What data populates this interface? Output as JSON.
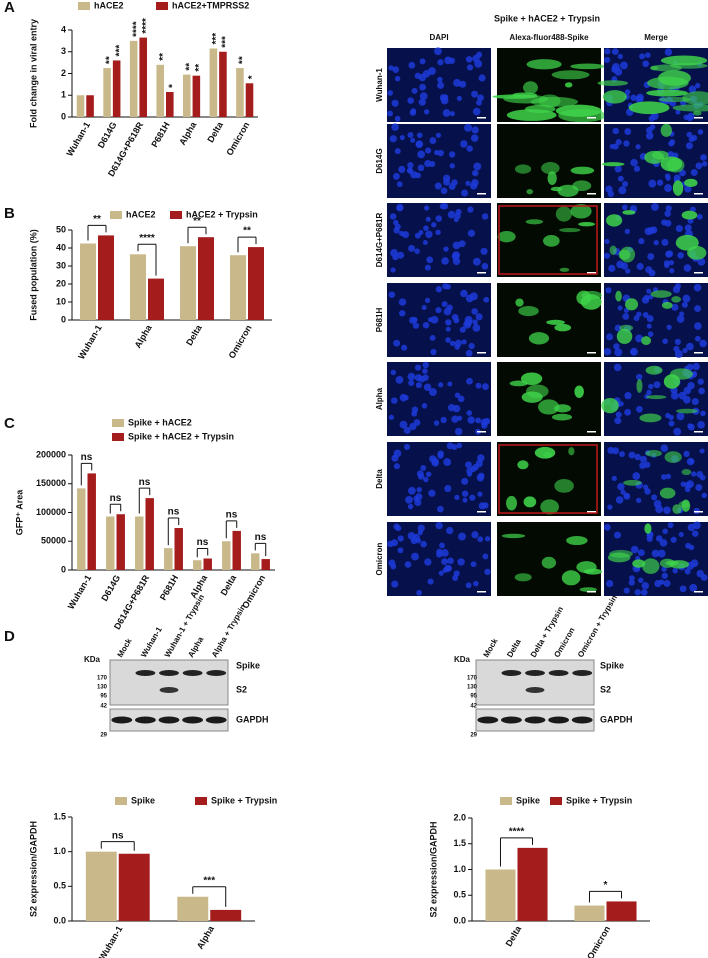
{
  "panel_labels": [
    "A",
    "B",
    "C",
    "D"
  ],
  "chart_data": [
    {
      "type": "bar",
      "y_label": "Fold change in viral entry",
      "categories": [
        "Wuhan-1",
        "D614G",
        "D614G+P618R",
        "P681H",
        "Alpha",
        "Delta",
        "Omicron"
      ],
      "series": [
        {
          "name": "hACE2",
          "color": "#c9b98a",
          "values": [
            1.0,
            2.25,
            3.5,
            2.4,
            1.95,
            3.15,
            2.25
          ],
          "significance": [
            null,
            "**",
            "****",
            "**",
            "**",
            "***",
            "**"
          ]
        },
        {
          "name": "hACE2+TMPRSS2",
          "color": "#a51c1c",
          "values": [
            1.0,
            2.6,
            3.65,
            1.15,
            1.9,
            3.0,
            1.55
          ],
          "significance": [
            null,
            "***",
            "****",
            "*",
            "**",
            "***",
            "*"
          ]
        }
      ],
      "ylim": [
        0,
        4
      ],
      "yticks": [
        0,
        1,
        2,
        3,
        4
      ]
    },
    {
      "type": "bar",
      "y_label": "Fused population (%)",
      "categories": [
        "Wuhan-1",
        "Alpha",
        "Delta",
        "Omicron"
      ],
      "series": [
        {
          "name": "hACE2",
          "color": "#c9b98a",
          "values": [
            42.5,
            36.5,
            41,
            36
          ]
        },
        {
          "name": "hACE2 + Trypsin",
          "color": "#a51c1c",
          "values": [
            47,
            23,
            46,
            40.5
          ]
        }
      ],
      "brackets": [
        "**",
        "****",
        "**",
        "**"
      ],
      "ylim": [
        0,
        50
      ],
      "yticks": [
        0,
        10,
        20,
        30,
        40,
        50
      ]
    },
    {
      "type": "bar",
      "y_label": "GFP⁺ Area",
      "categories": [
        "Wuhan-1",
        "D614G",
        "D614G+P681R",
        "P681H",
        "Alpha",
        "Delta",
        "Omicron"
      ],
      "series": [
        {
          "name": "Spike + hACE2",
          "color": "#c9b98a",
          "values": [
            142000,
            93000,
            93000,
            38000,
            17000,
            50000,
            29000
          ]
        },
        {
          "name": "Spike + hACE2 + Trypsin",
          "color": "#a51c1c",
          "values": [
            168000,
            97000,
            125000,
            73000,
            20000,
            68000,
            19000
          ]
        }
      ],
      "brackets": [
        "ns",
        "ns",
        "ns",
        "ns",
        "ns",
        "ns",
        "ns"
      ],
      "ylim": [
        0,
        200000
      ],
      "yticks": [
        0,
        50000,
        100000,
        150000,
        200000
      ]
    },
    {
      "type": "bar",
      "y_label": "S2 expression/GAPDH",
      "categories": [
        "Wuhan-1",
        "Alpha"
      ],
      "series": [
        {
          "name": "Spike",
          "color": "#c9b98a",
          "values": [
            1.0,
            0.35
          ]
        },
        {
          "name": "Spike + Trypsin",
          "color": "#a51c1c",
          "values": [
            0.97,
            0.16
          ]
        }
      ],
      "brackets": [
        "ns",
        "***"
      ],
      "ylim": [
        0,
        1.5
      ],
      "yticks": [
        {
          "value": 0,
          "label": "0.0"
        },
        0.5,
        {
          "value": 1,
          "label": "1.0"
        },
        1.5
      ]
    },
    {
      "type": "bar",
      "y_label": "S2 expression/GAPDH",
      "categories": [
        "Delta",
        "Omicron"
      ],
      "series": [
        {
          "name": "Spike",
          "color": "#c9b98a",
          "values": [
            1.0,
            0.3
          ]
        },
        {
          "name": "Spike + Trypsin",
          "color": "#a51c1c",
          "values": [
            1.42,
            0.38
          ]
        }
      ],
      "brackets": [
        "****",
        "*"
      ],
      "ylim": [
        0,
        2
      ],
      "yticks": [
        {
          "value": 0,
          "label": "0.0"
        },
        0.5,
        {
          "value": 1,
          "label": "1.0"
        },
        1.5,
        {
          "value": 2,
          "label": "2.0"
        }
      ]
    }
  ],
  "microscopy": {
    "title": "Spike + hACE2 + Trypsin",
    "columns": [
      "DAPI",
      "Alexa-fluor488-Spike",
      "Merge"
    ],
    "rows": [
      "Wuhan-1",
      "D614G",
      "D614G+P681R",
      "P681H",
      "Alpha",
      "Delta",
      "Omicron"
    ]
  },
  "blots": [
    {
      "unit": "KDa",
      "lanes": [
        "Mock",
        "Wuhan-1",
        "Wuhan-1 + Trypsin",
        "Alpha",
        "Alpha + Trypsin"
      ],
      "markers": [
        170,
        130,
        95,
        42,
        29
      ],
      "bands": [
        "Spike",
        "S2",
        "GAPDH"
      ]
    },
    {
      "unit": "KDa",
      "lanes": [
        "Mock",
        "Delta",
        "Delta + Trypsin",
        "Omicron",
        "Omicron + Trypsin"
      ],
      "markers": [
        170,
        130,
        95,
        42,
        29
      ],
      "bands": [
        "Spike",
        "S2",
        "GAPDH"
      ]
    }
  ]
}
